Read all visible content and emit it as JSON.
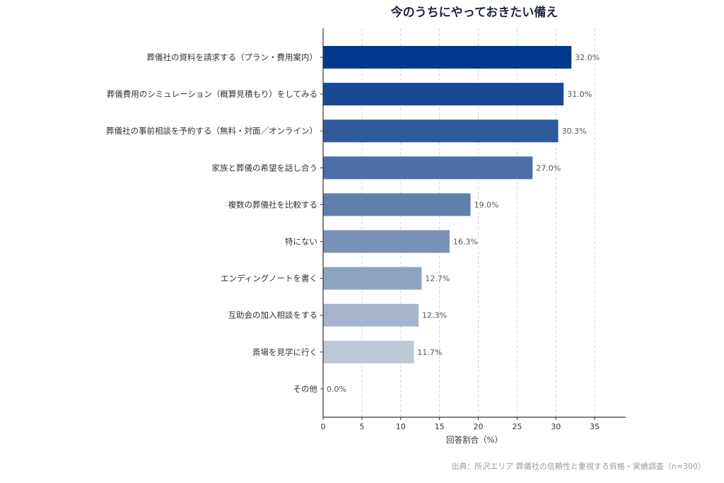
{
  "chart_data": {
    "type": "bar",
    "orientation": "horizontal",
    "title": "今のうちにやっておきたい備え",
    "xlabel": "回答割合（%）",
    "ylabel": "",
    "xlim": [
      0,
      39
    ],
    "xticks": [
      0,
      5,
      10,
      15,
      20,
      25,
      30,
      35
    ],
    "grid": "vertical-dashed",
    "categories": [
      "葬儀社の資料を請求する（プラン・費用案内）",
      "葬儀費用のシミュレーション（概算見積もり）をしてみる",
      "葬儀社の事前相談を予約する（無料・対面／オンライン）",
      "家族と葬儀の希望を話し合う",
      "複数の葬儀社を比較する",
      "特にない",
      "エンディングノートを書く",
      "互助会の加入相談をする",
      "斎場を見学に行く",
      "その他"
    ],
    "values": [
      32.0,
      31.0,
      30.3,
      27.0,
      19.0,
      16.3,
      12.7,
      12.3,
      11.7,
      0.0
    ],
    "value_labels": [
      "32.0%",
      "31.0%",
      "30.3%",
      "27.0%",
      "19.0%",
      "16.3%",
      "12.7%",
      "12.3%",
      "11.7%",
      "0.0%"
    ],
    "colors": [
      "#003a8c",
      "#174a93",
      "#2f5b9c",
      "#4a6ea5",
      "#5f7fad",
      "#7892b7",
      "#8fa4c1",
      "#a4b5cb",
      "#bdc8d4",
      "#cdd5de"
    ]
  },
  "source": "出典：所沢エリア 葬儀社の信頼性と重視する資格・実績調査（n=300）"
}
